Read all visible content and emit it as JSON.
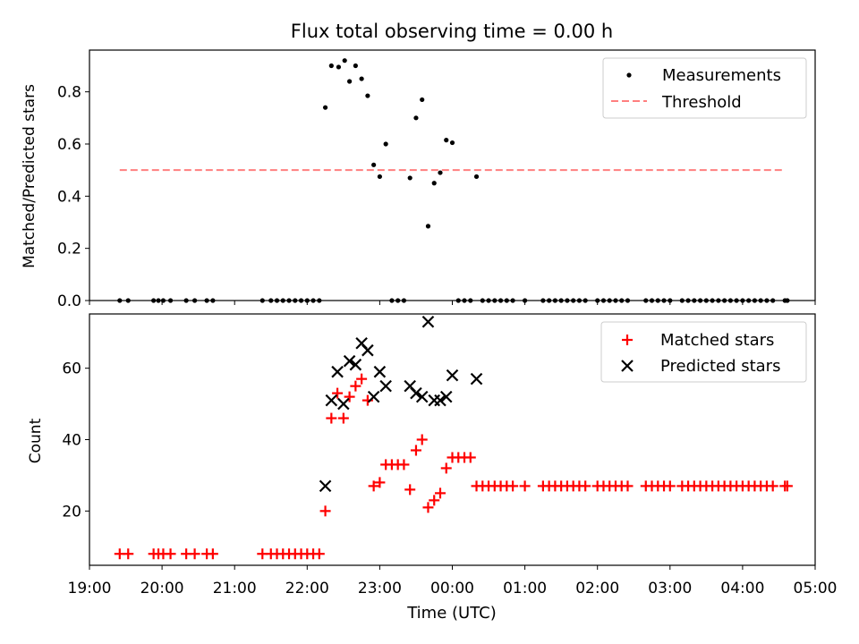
{
  "chart_data": [
    {
      "type": "scatter",
      "title": "Flux total observing time = 0.00 h",
      "xlabel": "",
      "ylabel": "Matched/Predicted stars",
      "x_unit": "time of day (UTC), consecutive days across midnight",
      "xlim": [
        "19:00",
        "05:00"
      ],
      "ylim": [
        0.0,
        0.96
      ],
      "yticks": [
        "0.0",
        "0.2",
        "0.4",
        "0.6",
        "0.8"
      ],
      "legend": "top-right",
      "legend_entries": [
        "Measurements",
        "Threshold"
      ],
      "threshold": {
        "name": "Threshold",
        "y": 0.5,
        "x_start": "19:25",
        "x_end": "04:35",
        "color": "#ff7f7f",
        "style": "dashed"
      },
      "series": [
        {
          "name": "Measurements",
          "color": "#000000",
          "marker": "dot",
          "points": [
            [
              "19:25",
              0.0
            ],
            [
              "19:32",
              0.0
            ],
            [
              "19:53",
              0.0
            ],
            [
              "19:57",
              0.0
            ],
            [
              "20:01",
              0.0
            ],
            [
              "20:07",
              0.0
            ],
            [
              "20:20",
              0.0
            ],
            [
              "20:27",
              0.0
            ],
            [
              "20:37",
              0.0
            ],
            [
              "20:42",
              0.0
            ],
            [
              "21:23",
              0.0
            ],
            [
              "21:30",
              0.0
            ],
            [
              "21:35",
              0.0
            ],
            [
              "21:40",
              0.0
            ],
            [
              "21:45",
              0.0
            ],
            [
              "21:50",
              0.0
            ],
            [
              "21:55",
              0.0
            ],
            [
              "22:00",
              0.0
            ],
            [
              "22:05",
              0.0
            ],
            [
              "22:10",
              0.0
            ],
            [
              "22:15",
              0.74
            ],
            [
              "22:20",
              0.9
            ],
            [
              "22:26",
              0.895
            ],
            [
              "22:31",
              0.92
            ],
            [
              "22:35",
              0.84
            ],
            [
              "22:40",
              0.9
            ],
            [
              "22:45",
              0.85
            ],
            [
              "22:50",
              0.785
            ],
            [
              "22:55",
              0.52
            ],
            [
              "23:00",
              0.475
            ],
            [
              "23:05",
              0.6
            ],
            [
              "23:10",
              0.0
            ],
            [
              "23:15",
              0.0
            ],
            [
              "23:20",
              0.0
            ],
            [
              "23:25",
              0.47
            ],
            [
              "23:30",
              0.7
            ],
            [
              "23:35",
              0.77
            ],
            [
              "23:40",
              0.285
            ],
            [
              "23:45",
              0.45
            ],
            [
              "23:50",
              0.49
            ],
            [
              "23:55",
              0.615
            ],
            [
              "00:00",
              0.605
            ],
            [
              "00:05",
              0.0
            ],
            [
              "00:10",
              0.0
            ],
            [
              "00:15",
              0.0
            ],
            [
              "00:20",
              0.475
            ],
            [
              "00:25",
              0.0
            ],
            [
              "00:30",
              0.0
            ],
            [
              "00:35",
              0.0
            ],
            [
              "00:40",
              0.0
            ],
            [
              "00:45",
              0.0
            ],
            [
              "00:50",
              0.0
            ],
            [
              "01:00",
              0.0
            ],
            [
              "01:15",
              0.0
            ],
            [
              "01:20",
              0.0
            ],
            [
              "01:25",
              0.0
            ],
            [
              "01:30",
              0.0
            ],
            [
              "01:35",
              0.0
            ],
            [
              "01:40",
              0.0
            ],
            [
              "01:45",
              0.0
            ],
            [
              "01:50",
              0.0
            ],
            [
              "02:00",
              0.0
            ],
            [
              "02:05",
              0.0
            ],
            [
              "02:10",
              0.0
            ],
            [
              "02:15",
              0.0
            ],
            [
              "02:20",
              0.0
            ],
            [
              "02:25",
              0.0
            ],
            [
              "02:40",
              0.0
            ],
            [
              "02:45",
              0.0
            ],
            [
              "02:50",
              0.0
            ],
            [
              "02:55",
              0.0
            ],
            [
              "03:00",
              0.0
            ],
            [
              "03:10",
              0.0
            ],
            [
              "03:15",
              0.0
            ],
            [
              "03:20",
              0.0
            ],
            [
              "03:25",
              0.0
            ],
            [
              "03:30",
              0.0
            ],
            [
              "03:35",
              0.0
            ],
            [
              "03:40",
              0.0
            ],
            [
              "03:45",
              0.0
            ],
            [
              "03:50",
              0.0
            ],
            [
              "03:55",
              0.0
            ],
            [
              "04:00",
              0.0
            ],
            [
              "04:05",
              0.0
            ],
            [
              "04:10",
              0.0
            ],
            [
              "04:15",
              0.0
            ],
            [
              "04:20",
              0.0
            ],
            [
              "04:25",
              0.0
            ],
            [
              "04:35",
              0.0
            ],
            [
              "04:37",
              0.0
            ]
          ]
        }
      ]
    },
    {
      "type": "scatter",
      "title": "",
      "xlabel": "Time (UTC)",
      "ylabel": "Count",
      "x_unit": "time of day (UTC), consecutive days across midnight",
      "xlim": [
        "19:00",
        "05:00"
      ],
      "ylim": [
        4.8,
        75.2
      ],
      "yticks": [
        "20",
        "40",
        "60"
      ],
      "xticks": [
        "19:00",
        "20:00",
        "21:00",
        "22:00",
        "23:00",
        "00:00",
        "01:00",
        "02:00",
        "03:00",
        "04:00",
        "05:00"
      ],
      "legend": "top-right",
      "legend_entries": [
        "Matched stars",
        "Predicted stars"
      ],
      "series": [
        {
          "name": "Matched stars",
          "color": "#ff0000",
          "marker": "plus",
          "points": [
            [
              "19:25",
              8
            ],
            [
              "19:32",
              8
            ],
            [
              "19:53",
              8
            ],
            [
              "19:57",
              8
            ],
            [
              "20:01",
              8
            ],
            [
              "20:07",
              8
            ],
            [
              "20:20",
              8
            ],
            [
              "20:27",
              8
            ],
            [
              "20:37",
              8
            ],
            [
              "20:42",
              8
            ],
            [
              "21:23",
              8
            ],
            [
              "21:30",
              8
            ],
            [
              "21:35",
              8
            ],
            [
              "21:40",
              8
            ],
            [
              "21:45",
              8
            ],
            [
              "21:50",
              8
            ],
            [
              "21:55",
              8
            ],
            [
              "22:00",
              8
            ],
            [
              "22:05",
              8
            ],
            [
              "22:10",
              8
            ],
            [
              "22:15",
              20
            ],
            [
              "22:20",
              46
            ],
            [
              "22:25",
              53
            ],
            [
              "22:30",
              46
            ],
            [
              "22:35",
              52
            ],
            [
              "22:40",
              55
            ],
            [
              "22:45",
              57
            ],
            [
              "22:50",
              51
            ],
            [
              "22:55",
              27
            ],
            [
              "23:00",
              28
            ],
            [
              "23:05",
              33
            ],
            [
              "23:10",
              33
            ],
            [
              "23:15",
              33
            ],
            [
              "23:20",
              33
            ],
            [
              "23:25",
              26
            ],
            [
              "23:30",
              37
            ],
            [
              "23:35",
              40
            ],
            [
              "23:40",
              21
            ],
            [
              "23:45",
              23
            ],
            [
              "23:50",
              25
            ],
            [
              "23:55",
              32
            ],
            [
              "00:00",
              35
            ],
            [
              "00:05",
              35
            ],
            [
              "00:10",
              35
            ],
            [
              "00:15",
              35
            ],
            [
              "00:20",
              27
            ],
            [
              "00:25",
              27
            ],
            [
              "00:30",
              27
            ],
            [
              "00:35",
              27
            ],
            [
              "00:40",
              27
            ],
            [
              "00:45",
              27
            ],
            [
              "00:50",
              27
            ],
            [
              "01:00",
              27
            ],
            [
              "01:15",
              27
            ],
            [
              "01:20",
              27
            ],
            [
              "01:25",
              27
            ],
            [
              "01:30",
              27
            ],
            [
              "01:35",
              27
            ],
            [
              "01:40",
              27
            ],
            [
              "01:45",
              27
            ],
            [
              "01:50",
              27
            ],
            [
              "02:00",
              27
            ],
            [
              "02:05",
              27
            ],
            [
              "02:10",
              27
            ],
            [
              "02:15",
              27
            ],
            [
              "02:20",
              27
            ],
            [
              "02:25",
              27
            ],
            [
              "02:40",
              27
            ],
            [
              "02:45",
              27
            ],
            [
              "02:50",
              27
            ],
            [
              "02:55",
              27
            ],
            [
              "03:00",
              27
            ],
            [
              "03:10",
              27
            ],
            [
              "03:15",
              27
            ],
            [
              "03:20",
              27
            ],
            [
              "03:25",
              27
            ],
            [
              "03:30",
              27
            ],
            [
              "03:35",
              27
            ],
            [
              "03:40",
              27
            ],
            [
              "03:45",
              27
            ],
            [
              "03:50",
              27
            ],
            [
              "03:55",
              27
            ],
            [
              "04:00",
              27
            ],
            [
              "04:05",
              27
            ],
            [
              "04:10",
              27
            ],
            [
              "04:15",
              27
            ],
            [
              "04:20",
              27
            ],
            [
              "04:25",
              27
            ],
            [
              "04:35",
              27
            ],
            [
              "04:37",
              27
            ]
          ]
        },
        {
          "name": "Predicted stars",
          "color": "#000000",
          "marker": "x",
          "points": [
            [
              "22:15",
              27
            ],
            [
              "22:20",
              51
            ],
            [
              "22:25",
              59
            ],
            [
              "22:30",
              50
            ],
            [
              "22:35",
              62
            ],
            [
              "22:40",
              61
            ],
            [
              "22:45",
              67
            ],
            [
              "22:50",
              65
            ],
            [
              "22:55",
              52
            ],
            [
              "23:00",
              59
            ],
            [
              "23:05",
              55
            ],
            [
              "23:25",
              55
            ],
            [
              "23:30",
              53
            ],
            [
              "23:35",
              52
            ],
            [
              "23:40",
              73
            ],
            [
              "23:45",
              51
            ],
            [
              "23:50",
              51
            ],
            [
              "23:55",
              52
            ],
            [
              "00:00",
              58
            ],
            [
              "00:20",
              57
            ]
          ]
        }
      ]
    }
  ]
}
